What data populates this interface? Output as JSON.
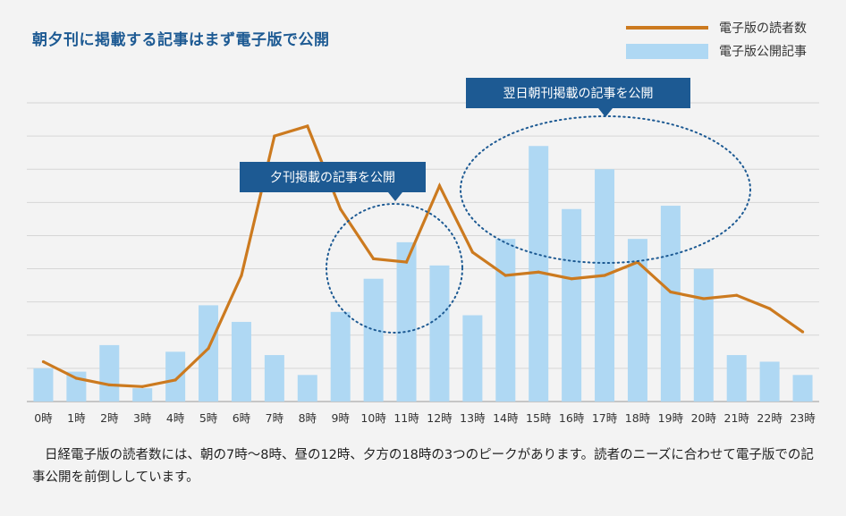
{
  "title": "朝夕刊に掲載する記事はまず電子版で公開",
  "legend": {
    "line_label": "電子版の読者数",
    "bar_label": "電子版公開記事"
  },
  "annotations": {
    "evening": "夕刊掲載の記事を公開",
    "morning": "翌日朝刊掲載の記事を公開"
  },
  "caption": "日経電子版の読者数には、朝の7時～8時、昼の12時、夕方の18時の3つのピークがあります。読者のニーズに合わせて電子版での記事公開を前倒ししています。",
  "colors": {
    "line": "#cc7a1f",
    "bar": "#afd8f3",
    "annotation_box": "#1d5a93",
    "circle": "#1d5a93",
    "title": "#1d5a93"
  },
  "chart_data": {
    "type": "bar+line",
    "categories": [
      "0時",
      "1時",
      "2時",
      "3時",
      "4時",
      "5時",
      "6時",
      "7時",
      "8時",
      "9時",
      "10時",
      "11時",
      "12時",
      "13時",
      "14時",
      "15時",
      "16時",
      "17時",
      "18時",
      "19時",
      "20時",
      "21時",
      "22時",
      "23時"
    ],
    "bar_values": [
      1.0,
      0.9,
      1.7,
      0.4,
      1.5,
      2.9,
      2.4,
      1.4,
      0.8,
      2.7,
      3.7,
      4.8,
      4.1,
      2.6,
      4.9,
      7.7,
      5.8,
      7.0,
      4.9,
      5.9,
      4.0,
      1.4,
      1.2,
      0.8
    ],
    "line_values": [
      1.2,
      0.7,
      0.5,
      0.45,
      0.65,
      1.6,
      3.8,
      8.0,
      8.3,
      5.8,
      4.3,
      4.2,
      6.5,
      4.5,
      3.8,
      3.9,
      3.7,
      3.8,
      4.2,
      3.3,
      3.1,
      3.2,
      2.8,
      2.1
    ],
    "ylim": [
      0,
      9
    ],
    "grid": true,
    "gridlines": 9,
    "legend_position": "top-right"
  }
}
